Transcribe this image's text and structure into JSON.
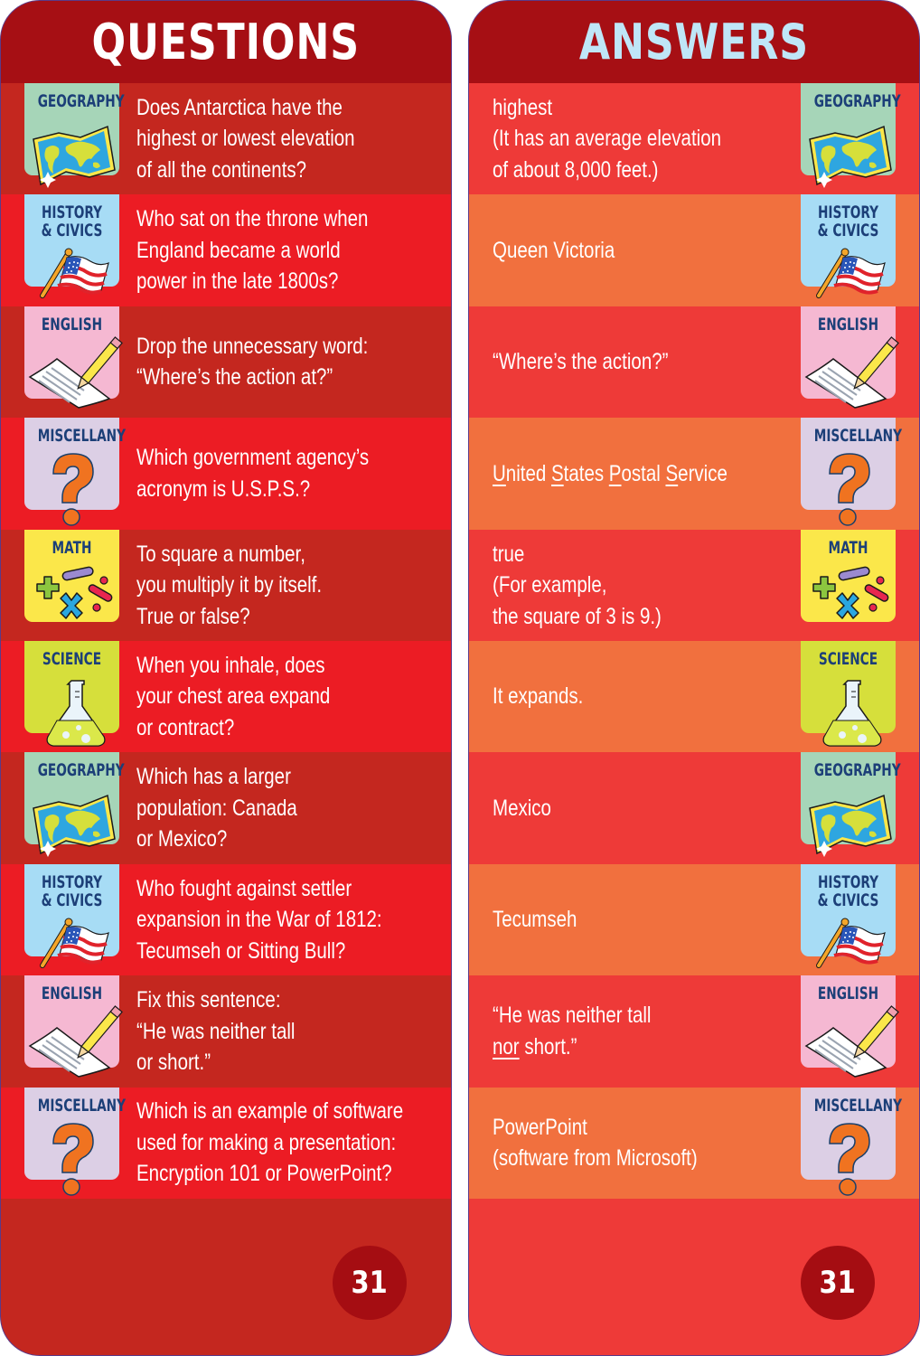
{
  "questions_card": {
    "title": "QUESTIONS",
    "page_number": "31",
    "items": [
      {
        "category": "GEOGRAPHY",
        "category_key": "geography",
        "icon": "map-icon",
        "lines": [
          "Does Antarctica have the",
          "highest or lowest elevation",
          "of all the continents?"
        ]
      },
      {
        "category": "HISTORY & CIVICS",
        "category_key": "history",
        "icon": "flag-icon",
        "lines": [
          "Who sat on the throne when",
          "England became a world",
          "power in the late 1800s?"
        ]
      },
      {
        "category": "ENGLISH",
        "category_key": "english",
        "icon": "pencil-paper-icon",
        "lines": [
          "Drop the unnecessary word:",
          "“Where’s the action at?”"
        ]
      },
      {
        "category": "MISCELLANY",
        "category_key": "misc",
        "icon": "question-mark-icon",
        "lines": [
          "Which government agency’s",
          "acronym is U.S.P.S.?"
        ]
      },
      {
        "category": "MATH",
        "category_key": "math",
        "icon": "math-symbols-icon",
        "lines": [
          "To square a number,",
          "you multiply it by itself.",
          "True or false?"
        ]
      },
      {
        "category": "SCIENCE",
        "category_key": "science",
        "icon": "flask-icon",
        "lines": [
          "When you inhale, does",
          "your chest area expand",
          "or contract?"
        ]
      },
      {
        "category": "GEOGRAPHY",
        "category_key": "geography",
        "icon": "map-icon",
        "lines": [
          "Which has a larger",
          "population: Canada",
          "or Mexico?"
        ]
      },
      {
        "category": "HISTORY & CIVICS",
        "category_key": "history",
        "icon": "flag-icon",
        "lines": [
          "Who fought against settler",
          "expansion in the War of 1812:",
          "Tecumseh or Sitting Bull?"
        ]
      },
      {
        "category": "ENGLISH",
        "category_key": "english",
        "icon": "pencil-paper-icon",
        "lines": [
          "Fix this sentence:",
          "“He was neither tall",
          "or short.”"
        ]
      },
      {
        "category": "MISCELLANY",
        "category_key": "misc",
        "icon": "question-mark-icon",
        "lines": [
          "Which is an example of software",
          "used for making a presentation:",
          "Encryption 101 or PowerPoint?"
        ]
      }
    ]
  },
  "answers_card": {
    "title": "ANSWERS",
    "page_number": "31",
    "items": [
      {
        "category": "GEOGRAPHY",
        "category_key": "geography",
        "icon": "map-icon",
        "lines": [
          "highest",
          "(It has an average elevation",
          "of about 8,000 feet.)"
        ]
      },
      {
        "category": "HISTORY & CIVICS",
        "category_key": "history",
        "icon": "flag-icon",
        "lines": [
          "Queen Victoria"
        ]
      },
      {
        "category": "ENGLISH",
        "category_key": "english",
        "icon": "pencil-paper-icon",
        "lines": [
          "“Where’s the action?”"
        ]
      },
      {
        "category": "MISCELLANY",
        "category_key": "misc",
        "icon": "question-mark-icon",
        "lines": [
          "United States Postal Service"
        ],
        "underlined_initials": [
          "U",
          "S",
          "P",
          "S"
        ]
      },
      {
        "category": "MATH",
        "category_key": "math",
        "icon": "math-symbols-icon",
        "lines": [
          "true",
          "(For example,",
          "the square of 3 is 9.)"
        ]
      },
      {
        "category": "SCIENCE",
        "category_key": "science",
        "icon": "flask-icon",
        "lines": [
          "It expands."
        ]
      },
      {
        "category": "GEOGRAPHY",
        "category_key": "geography",
        "icon": "map-icon",
        "lines": [
          "Mexico"
        ]
      },
      {
        "category": "HISTORY & CIVICS",
        "category_key": "history",
        "icon": "flag-icon",
        "lines": [
          "Tecumseh"
        ]
      },
      {
        "category": "ENGLISH",
        "category_key": "english",
        "icon": "pencil-paper-icon",
        "lines": [
          "“He was neither tall",
          "nor short.”"
        ],
        "underlined_word": "nor"
      },
      {
        "category": "MISCELLANY",
        "category_key": "misc",
        "icon": "question-mark-icon",
        "lines": [
          "PowerPoint",
          "(software from Microsoft)"
        ]
      }
    ]
  },
  "colors": {
    "header_bg": "#a60f14",
    "questions_row_dark": "#c4271f",
    "questions_row_bright": "#ec1c24",
    "answers_row_red": "#ee3a38",
    "answers_row_orange": "#f1703e",
    "answers_title": "#bfe6f7",
    "category_label": "#1c3f78",
    "badge_bg": "#a50d12"
  }
}
